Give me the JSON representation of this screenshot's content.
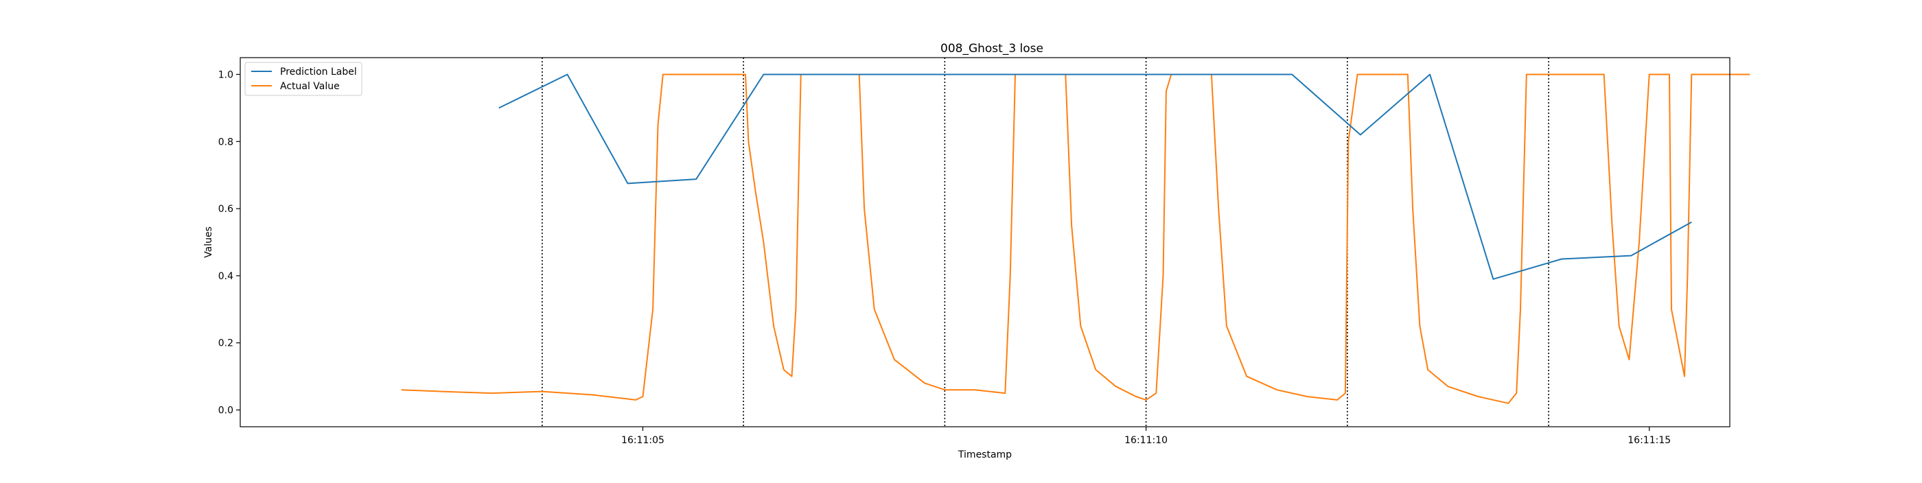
{
  "chart_data": {
    "type": "line",
    "title": "008_Ghost_3 lose",
    "xlabel": "Timestamp",
    "ylabel": "Values",
    "xlim": [
      1.0,
      15.8
    ],
    "ylim": [
      -0.05,
      1.05
    ],
    "x_unit": "seconds after 16:11:00",
    "grid": false,
    "legend_location": "top-left",
    "x_ticks": [
      {
        "value": 5,
        "label": "16:11:05"
      },
      {
        "value": 10,
        "label": "16:11:10"
      },
      {
        "value": 15,
        "label": "16:11:15"
      }
    ],
    "y_ticks": [
      {
        "value": 0.0,
        "label": "0.0"
      },
      {
        "value": 0.2,
        "label": "0.2"
      },
      {
        "value": 0.4,
        "label": "0.4"
      },
      {
        "value": 0.6,
        "label": "0.6"
      },
      {
        "value": 0.8,
        "label": "0.8"
      },
      {
        "value": 1.0,
        "label": "1.0"
      }
    ],
    "vertical_lines": [
      4.0,
      6.0,
      8.0,
      10.0,
      12.0,
      14.0
    ],
    "series": [
      {
        "name": "Prediction Label",
        "color": "#1f77b4",
        "x": [
          3.57,
          4.25,
          4.85,
          5.53,
          6.2,
          10.0,
          11.45,
          12.13,
          12.82,
          13.45,
          14.13,
          14.82,
          15.42
        ],
        "y": [
          0.9,
          1.0,
          0.675,
          0.688,
          1.0,
          1.0,
          1.0,
          0.82,
          1.0,
          0.39,
          0.45,
          0.46,
          0.56
        ]
      },
      {
        "name": "Actual Value",
        "color": "#ff7f0e",
        "x": [
          2.6,
          3.0,
          3.5,
          4.0,
          4.5,
          4.93,
          5.0,
          5.1,
          5.15,
          5.2,
          5.26,
          5.3,
          5.4,
          5.6,
          5.8,
          5.95,
          6.02,
          6.05,
          6.12,
          6.2,
          6.3,
          6.4,
          6.48,
          6.52,
          6.57,
          6.62,
          6.68,
          6.8,
          7.0,
          7.15,
          7.2,
          7.3,
          7.5,
          7.8,
          8.0,
          8.3,
          8.6,
          8.65,
          8.7,
          8.74,
          9.0,
          9.2,
          9.26,
          9.35,
          9.5,
          9.7,
          9.9,
          10.0,
          10.1,
          10.17,
          10.2,
          10.25,
          10.5,
          10.65,
          10.72,
          10.8,
          11.0,
          11.3,
          11.6,
          11.9,
          11.98,
          12.01,
          12.1,
          12.4,
          12.6,
          12.65,
          12.72,
          12.8,
          13.0,
          13.3,
          13.6,
          13.68,
          13.72,
          13.78,
          13.85,
          13.9,
          14.0,
          14.3,
          14.55,
          14.63,
          14.7,
          14.8,
          14.9,
          15.0,
          15.05,
          15.1,
          15.2,
          15.22,
          15.35,
          15.38,
          15.42,
          15.45,
          15.48,
          15.52,
          15.6,
          16.0
        ],
        "y": [
          0.06,
          0.055,
          0.05,
          0.055,
          0.045,
          0.03,
          0.04,
          0.3,
          0.85,
          1.0,
          1.0,
          1.0,
          1.0,
          1.0,
          1.0,
          1.0,
          1.0,
          0.8,
          0.65,
          0.5,
          0.25,
          0.12,
          0.1,
          0.3,
          1.0,
          1.0,
          1.0,
          1.0,
          1.0,
          1.0,
          0.6,
          0.3,
          0.15,
          0.08,
          0.06,
          0.06,
          0.05,
          0.4,
          1.0,
          1.0,
          1.0,
          1.0,
          0.55,
          0.25,
          0.12,
          0.07,
          0.04,
          0.03,
          0.05,
          0.4,
          0.95,
          1.0,
          1.0,
          1.0,
          0.6,
          0.25,
          0.1,
          0.06,
          0.04,
          0.03,
          0.05,
          0.8,
          1.0,
          1.0,
          1.0,
          0.6,
          0.25,
          0.12,
          0.07,
          0.04,
          0.02,
          0.05,
          0.3,
          1.0,
          1.0,
          1.0,
          1.0,
          1.0,
          1.0,
          0.55,
          0.25,
          0.15,
          0.5,
          1.0,
          1.0,
          1.0,
          1.0,
          0.3,
          0.1,
          0.4,
          1.0,
          1.0,
          1.0,
          1.0,
          1.0,
          1.0
        ]
      }
    ]
  }
}
